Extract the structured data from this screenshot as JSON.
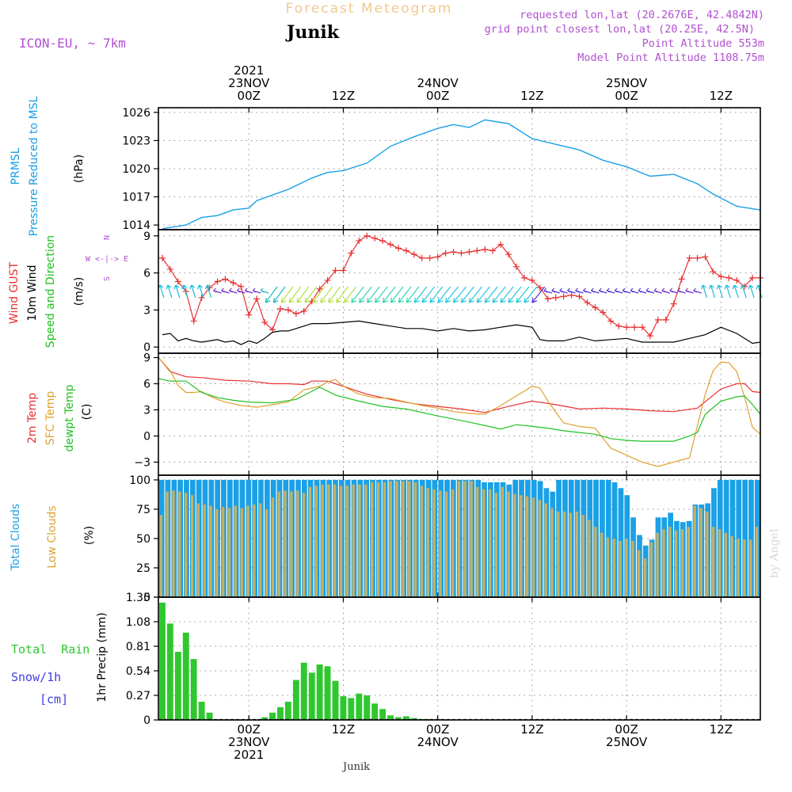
{
  "header": {
    "banner": "Forecast Meteogram",
    "location": "Junik",
    "model": "ICON-EU, ~ 7km",
    "requested": "requested lon,lat (20.2676E, 42.4842N)",
    "closest": "grid point closest lon,lat (20.25E, 42.5N)",
    "point_alt": "Point Altitude 553m",
    "model_alt": "Model Point Altitude 1108.75m",
    "credit": "by Angel",
    "footer": "Junik"
  },
  "time_axis": {
    "ticks": [
      {
        "hour": 0,
        "top": [
          "2021",
          "23NOV",
          "00Z"
        ],
        "bottom": [
          "00Z",
          "23NOV",
          "2021"
        ]
      },
      {
        "hour": 12,
        "top": [
          "12Z"
        ],
        "bottom": [
          "12Z"
        ]
      },
      {
        "hour": 24,
        "top": [
          "24NOV",
          "00Z"
        ],
        "bottom": [
          "00Z",
          "24NOV"
        ]
      },
      {
        "hour": 36,
        "top": [
          "12Z"
        ],
        "bottom": [
          "12Z"
        ]
      },
      {
        "hour": 48,
        "top": [
          "25NOV",
          "00Z"
        ],
        "bottom": [
          "00Z",
          "25NOV"
        ]
      },
      {
        "hour": 60,
        "top": [
          "12Z"
        ],
        "bottom": [
          "12Z"
        ]
      }
    ],
    "start_hour": -11.5,
    "end_hour": 65
  },
  "colors": {
    "pressure": "#1aa0e6",
    "gust": "#e83030",
    "wind": "#000000",
    "sfc_temp": "#e0a030",
    "dewpt": "#20c020",
    "total_clouds": "#1aa0e6",
    "low_clouds": "#c8b060",
    "rain": "#2ec82e",
    "snow": "#4040e0",
    "meta": "#b050d0",
    "banner": "#f0c890"
  },
  "chart_data": [
    {
      "type": "line",
      "panel": "pressure",
      "title": "PRMSL",
      "ylabel_lines": [
        "PRMSL",
        "Pressure Reduced to MSL",
        "(hPa)"
      ],
      "ylim": [
        1013.5,
        1026.5
      ],
      "yticks": [
        "1014",
        "1017",
        "1020",
        "1023",
        "1026"
      ],
      "ytick_values": [
        1014,
        1017,
        1020,
        1023,
        1026
      ],
      "grid": true,
      "series": [
        {
          "name": "PRMSL",
          "x": [
            -11,
            -8,
            -6,
            -4,
            -2,
            0,
            1,
            3,
            5,
            8,
            10,
            12,
            15,
            18,
            21,
            24,
            26,
            28,
            30,
            33,
            36,
            39,
            42,
            45,
            48,
            51,
            54,
            57,
            59,
            62,
            65
          ],
          "values": [
            1013.6,
            1014.0,
            1014.8,
            1015.0,
            1015.6,
            1015.8,
            1016.6,
            1017.2,
            1017.8,
            1019.0,
            1019.6,
            1019.8,
            1020.6,
            1022.4,
            1023.4,
            1024.3,
            1024.7,
            1024.4,
            1025.2,
            1024.8,
            1023.2,
            1022.6,
            1022.0,
            1020.9,
            1020.2,
            1019.2,
            1019.4,
            1018.4,
            1017.3,
            1016.0,
            1015.6
          ]
        }
      ]
    },
    {
      "type": "line",
      "panel": "wind",
      "ylabel_lines": [
        "Wind GUST",
        "10m Wind",
        "Speed and Direction",
        "(m/s)"
      ],
      "compass": [
        "N",
        "W <-|-> E",
        "S"
      ],
      "ylim": [
        -0.5,
        9.5
      ],
      "yticks": [
        "0",
        "3",
        "6",
        "9"
      ],
      "ytick_values": [
        0,
        3,
        6,
        9
      ],
      "grid": true,
      "series": [
        {
          "name": "Wind GUST",
          "x": [
            -11,
            -10,
            -9,
            -8,
            -7,
            -6,
            -5,
            -4,
            -3,
            -2,
            -1,
            0,
            1,
            2,
            3,
            4,
            5,
            6,
            7,
            8,
            9,
            10,
            11,
            12,
            13,
            14,
            15,
            16,
            17,
            18,
            19,
            20,
            21,
            22,
            23,
            24,
            25,
            26,
            27,
            28,
            29,
            30,
            31,
            32,
            33,
            34,
            35,
            36,
            37,
            38,
            39,
            40,
            41,
            42,
            43,
            44,
            45,
            46,
            47,
            48,
            49,
            50,
            51,
            52,
            53,
            54,
            55,
            56,
            57,
            58,
            59,
            60,
            61,
            62,
            63,
            64,
            65
          ],
          "values": [
            7.2,
            6.3,
            5.3,
            4.5,
            2.1,
            4.0,
            4.8,
            5.3,
            5.5,
            5.2,
            4.9,
            2.6,
            3.9,
            2.0,
            1.4,
            3.1,
            3.0,
            2.7,
            2.9,
            3.7,
            4.7,
            5.4,
            6.2,
            6.2,
            7.6,
            8.6,
            9.0,
            8.8,
            8.6,
            8.3,
            8.0,
            7.8,
            7.5,
            7.2,
            7.2,
            7.3,
            7.6,
            7.7,
            7.6,
            7.7,
            7.8,
            7.9,
            7.8,
            8.3,
            7.5,
            6.5,
            5.6,
            5.4,
            4.8,
            3.9,
            4.0,
            4.1,
            4.2,
            4.1,
            3.6,
            3.2,
            2.8,
            2.1,
            1.7,
            1.6,
            1.6,
            1.6,
            0.9,
            2.2,
            2.2,
            3.5,
            5.5,
            7.2,
            7.2,
            7.3,
            6.1,
            5.7,
            5.6,
            5.4,
            4.9,
            5.6,
            5.6
          ]
        },
        {
          "name": "10m Wind",
          "x": [
            -11,
            -10,
            -9,
            -8,
            -7,
            -6,
            -5,
            -4,
            -3,
            -2,
            -1,
            0,
            1,
            2,
            3,
            4,
            5,
            6,
            8,
            10,
            12,
            14,
            16,
            18,
            20,
            22,
            24,
            26,
            28,
            30,
            32,
            34,
            36,
            37,
            38,
            40,
            42,
            44,
            46,
            48,
            50,
            52,
            54,
            56,
            58,
            60,
            62,
            64,
            65
          ],
          "values": [
            1.0,
            1.1,
            0.5,
            0.7,
            0.5,
            0.4,
            0.5,
            0.6,
            0.4,
            0.5,
            0.2,
            0.5,
            0.3,
            0.7,
            1.2,
            1.3,
            1.3,
            1.5,
            1.9,
            1.9,
            2.0,
            2.1,
            1.9,
            1.7,
            1.5,
            1.5,
            1.3,
            1.5,
            1.3,
            1.4,
            1.6,
            1.8,
            1.6,
            0.6,
            0.5,
            0.5,
            0.8,
            0.5,
            0.6,
            0.7,
            0.4,
            0.4,
            0.4,
            0.7,
            1.0,
            1.6,
            1.1,
            0.3,
            0.4
          ]
        }
      ]
    },
    {
      "type": "line",
      "panel": "temperature",
      "ylabel_lines": [
        "2m Temp",
        "SFC Temp",
        "dewpt Temp",
        "(C)"
      ],
      "ylim": [
        -4.5,
        9.5
      ],
      "yticks": [
        "−3",
        "0",
        "3",
        "6",
        "9"
      ],
      "ytick_values": [
        -3,
        0,
        3,
        6,
        9
      ],
      "grid": true,
      "series": [
        {
          "name": "2m Temp",
          "x": [
            -11.5,
            -10,
            -8,
            -6,
            -3,
            0,
            3,
            5,
            7,
            8,
            10,
            12,
            15,
            18,
            21,
            24,
            27,
            30,
            33,
            36,
            39,
            42,
            45,
            48,
            51,
            54,
            57,
            60,
            62,
            63,
            64,
            65
          ],
          "values": [
            9.0,
            7.4,
            6.8,
            6.7,
            6.4,
            6.3,
            6.0,
            6.0,
            5.9,
            6.3,
            6.3,
            5.7,
            4.8,
            4.2,
            3.7,
            3.4,
            3.1,
            2.7,
            3.4,
            4.0,
            3.6,
            3.1,
            3.2,
            3.1,
            2.9,
            2.8,
            3.2,
            5.4,
            6.0,
            6.0,
            5.1,
            5.0
          ]
        },
        {
          "name": "SFC Temp",
          "x": [
            -11.5,
            -10,
            -9,
            -8,
            -7,
            -6,
            -5,
            -4,
            -3,
            -1,
            1,
            3,
            5,
            7,
            9,
            10,
            11,
            12,
            14,
            16,
            18,
            20,
            22,
            24,
            26,
            28,
            30,
            32,
            34,
            36,
            37,
            38,
            40,
            42,
            44,
            46,
            48,
            50,
            52,
            54,
            56,
            58,
            59,
            60,
            61,
            62,
            63,
            64,
            65
          ],
          "values": [
            9.0,
            7.5,
            5.8,
            5.0,
            5.0,
            5.1,
            4.6,
            4.2,
            3.9,
            3.5,
            3.3,
            3.6,
            3.9,
            5.3,
            5.7,
            6.2,
            6.5,
            5.7,
            4.8,
            4.4,
            4.3,
            3.9,
            3.5,
            3.2,
            2.8,
            2.6,
            2.5,
            3.5,
            4.6,
            5.7,
            5.5,
            4.0,
            1.5,
            1.1,
            0.9,
            -1.4,
            -2.2,
            -3.0,
            -3.5,
            -3.0,
            -2.5,
            4.8,
            7.5,
            8.5,
            8.4,
            7.4,
            4.5,
            1.0,
            0.2
          ]
        },
        {
          "name": "dewpt Temp",
          "x": [
            -11.5,
            -10,
            -8,
            -6,
            -4,
            -2,
            0,
            3,
            6,
            9,
            11,
            14,
            17,
            20,
            24,
            28,
            32,
            34,
            36,
            38,
            40,
            42,
            44,
            46,
            48,
            50,
            52,
            54,
            56,
            57,
            58,
            60,
            62,
            63,
            64,
            65
          ],
          "values": [
            6.6,
            6.3,
            6.3,
            5.0,
            4.4,
            4.1,
            3.9,
            3.8,
            4.2,
            5.6,
            4.7,
            4.0,
            3.4,
            3.1,
            2.3,
            1.6,
            0.8,
            1.3,
            1.1,
            0.9,
            0.6,
            0.4,
            0.2,
            -0.3,
            -0.5,
            -0.6,
            -0.6,
            -0.6,
            0.0,
            0.4,
            2.5,
            4.0,
            4.5,
            4.6,
            3.6,
            2.5
          ]
        }
      ]
    },
    {
      "type": "bar",
      "panel": "clouds",
      "ylabel_lines": [
        "Total Clouds",
        "Low Clouds",
        "(%)"
      ],
      "ylim": [
        0,
        104
      ],
      "yticks": [
        "0",
        "25",
        "50",
        "75",
        "100"
      ],
      "ytick_values": [
        0,
        25,
        50,
        75,
        100
      ],
      "grid": true,
      "series": [
        {
          "name": "Total Clouds",
          "values": [
            100,
            100,
            100,
            100,
            100,
            100,
            100,
            100,
            100,
            100,
            100,
            100,
            100,
            100,
            100,
            100,
            100,
            100,
            100,
            100,
            100,
            100,
            100,
            100,
            100,
            100,
            100,
            100,
            100,
            100,
            100,
            100,
            100,
            100,
            100,
            100,
            100,
            100,
            100,
            100,
            100,
            100,
            100,
            100,
            100,
            100,
            100,
            100,
            100,
            100,
            100,
            100,
            98,
            98,
            98,
            98,
            96,
            100,
            100,
            100,
            100,
            99,
            93,
            90,
            100,
            100,
            100,
            100,
            100,
            100,
            100,
            100,
            100,
            98,
            93,
            87,
            68,
            53,
            44,
            49,
            68,
            68,
            72,
            65,
            64,
            65,
            79,
            79,
            80,
            93,
            100,
            100,
            100,
            100,
            100,
            100,
            100
          ]
        },
        {
          "name": "Low Clouds",
          "values": [
            70,
            90,
            91,
            90,
            89,
            87,
            80,
            79,
            78,
            75,
            77,
            76,
            78,
            76,
            78,
            79,
            80,
            75,
            85,
            90,
            91,
            90,
            91,
            89,
            94,
            95,
            96,
            96,
            96,
            95,
            95,
            96,
            96,
            96,
            98,
            98,
            98,
            99,
            99,
            99,
            99,
            98,
            95,
            93,
            92,
            91,
            90,
            92,
            99,
            99,
            99,
            94,
            92,
            92,
            89,
            94,
            90,
            88,
            87,
            86,
            85,
            83,
            80,
            76,
            73,
            73,
            72,
            73,
            70,
            66,
            60,
            55,
            51,
            50,
            48,
            50,
            48,
            40,
            33,
            47,
            55,
            58,
            60,
            57,
            58,
            60,
            78,
            76,
            73,
            60,
            58,
            55,
            52,
            50,
            49,
            49,
            60
          ]
        }
      ]
    },
    {
      "type": "bar",
      "panel": "precip",
      "ylabel_lines": [
        "1hr Precip (mm)"
      ],
      "legend": [
        "Total  Rain",
        "Snow/1h",
        "[cm]"
      ],
      "ylim": [
        0,
        1.35
      ],
      "yticks": [
        "0",
        "0.27",
        "0.54",
        "0.81",
        "1.08",
        "1.35"
      ],
      "ytick_values": [
        0,
        0.27,
        0.54,
        0.81,
        1.08,
        1.35
      ],
      "grid": true,
      "series": [
        {
          "name": "Total Rain",
          "x": [
            -11,
            -10,
            -9,
            -8,
            -7,
            -6,
            -5,
            -4,
            -3,
            -2,
            -1,
            0,
            1,
            2,
            3,
            4,
            5,
            6,
            7,
            8,
            9,
            10,
            11,
            12,
            13,
            14,
            15,
            16,
            17,
            18,
            19,
            20,
            21,
            22,
            23,
            24
          ],
          "values": [
            1.29,
            1.06,
            0.75,
            0.96,
            0.67,
            0.2,
            0.08,
            0,
            0,
            0,
            0,
            0,
            0,
            0.03,
            0.08,
            0.14,
            0.2,
            0.44,
            0.63,
            0.52,
            0.61,
            0.59,
            0.43,
            0.26,
            0.24,
            0.29,
            0.27,
            0.18,
            0.12,
            0.05,
            0.03,
            0.04,
            0.02,
            0.01,
            0.01,
            0.01
          ]
        }
      ]
    }
  ]
}
